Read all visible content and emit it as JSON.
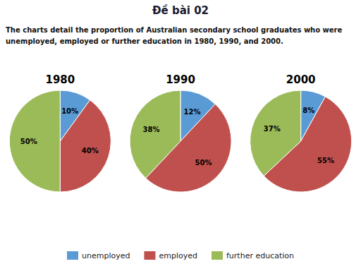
{
  "title": "Đề bài 02",
  "annotations": [
    "The charts detail the proportion of Australian secondary school graduates who were",
    "unemployed, employed or further education in 1980, 1990, and 2000."
  ],
  "chart_data": [
    {
      "type": "pie",
      "title": "1980",
      "categories": [
        "unemployed",
        "employed",
        "further education"
      ],
      "values": [
        10,
        40,
        50
      ],
      "value_labels": [
        "10%",
        "40%",
        "50%"
      ],
      "colors": [
        "#5b9bd5",
        "#c0504d",
        "#9bbb59"
      ],
      "data_labels": true,
      "legend": "bottom"
    },
    {
      "type": "pie",
      "title": "1990",
      "categories": [
        "unemployed",
        "employed",
        "further education"
      ],
      "values": [
        12,
        50,
        38
      ],
      "value_labels": [
        "12%",
        "50%",
        "38%"
      ],
      "colors": [
        "#5b9bd5",
        "#c0504d",
        "#9bbb59"
      ],
      "data_labels": true
    },
    {
      "type": "pie",
      "title": "2000",
      "categories": [
        "unemployed",
        "employed",
        "further education"
      ],
      "values": [
        8,
        55,
        37
      ],
      "value_labels": [
        "8%",
        "55%",
        "37%"
      ],
      "colors": [
        "#5b9bd5",
        "#c0504d",
        "#9bbb59"
      ],
      "data_labels": true
    }
  ]
}
